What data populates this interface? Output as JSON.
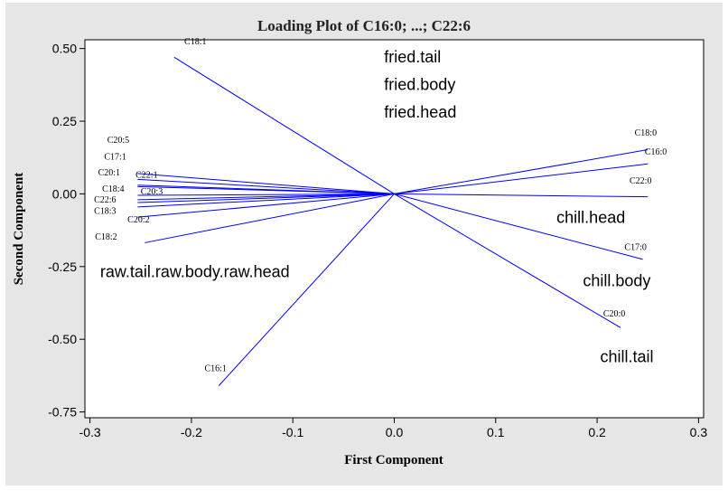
{
  "chart_data": {
    "type": "loading-plot",
    "title": "Loading Plot of C16:0; ...; C22:6",
    "xlabel": "First Component",
    "ylabel": "Second Component",
    "xlim": [
      -0.305,
      0.305
    ],
    "ylim": [
      -0.77,
      0.53
    ],
    "xticks": [
      -0.3,
      -0.2,
      -0.1,
      0.0,
      0.1,
      0.2,
      0.3
    ],
    "xtick_labels": [
      "-0.3",
      "-0.2",
      "-0.1",
      "0.0",
      "0.1",
      "0.2",
      "0.3"
    ],
    "yticks": [
      0.5,
      0.25,
      0.0,
      -0.25,
      -0.5,
      -0.75
    ],
    "ytick_labels": [
      "0.50",
      "0.25",
      "0.00",
      "-0.25",
      "-0.50",
      "-0.75"
    ],
    "grid": false,
    "line_color": "#0000ff",
    "loadings": [
      {
        "label": "C18:1",
        "x": -0.217,
        "y": 0.47,
        "lx": -0.207,
        "ly": 0.515
      },
      {
        "label": "C20:5",
        "x": -0.253,
        "y": 0.07,
        "lx": -0.283,
        "ly": 0.175
      },
      {
        "label": "C17:1",
        "x": -0.253,
        "y": 0.05,
        "lx": -0.286,
        "ly": 0.118
      },
      {
        "label": "C20:1",
        "x": -0.253,
        "y": 0.03,
        "lx": -0.292,
        "ly": 0.063
      },
      {
        "label": "C22:1",
        "x": -0.253,
        "y": 0.025,
        "lx": -0.255,
        "ly": 0.055
      },
      {
        "label": "C18:4",
        "x": -0.253,
        "y": -0.02,
        "lx": -0.288,
        "ly": 0.008
      },
      {
        "label": "C20:3",
        "x": -0.253,
        "y": -0.005,
        "lx": -0.25,
        "ly": -0.002
      },
      {
        "label": "C22:6",
        "x": -0.253,
        "y": -0.03,
        "lx": -0.296,
        "ly": -0.03
      },
      {
        "label": "C18:3",
        "x": -0.253,
        "y": -0.045,
        "lx": -0.296,
        "ly": -0.068
      },
      {
        "label": "C20:2",
        "x": -0.253,
        "y": -0.08,
        "lx": -0.263,
        "ly": -0.098
      },
      {
        "label": "C18:2",
        "x": -0.246,
        "y": -0.168,
        "lx": -0.295,
        "ly": -0.158
      },
      {
        "label": "C16:1",
        "x": -0.173,
        "y": -0.66,
        "lx": -0.187,
        "ly": -0.61
      },
      {
        "label": "C18:0",
        "x": 0.25,
        "y": 0.152,
        "lx": 0.237,
        "ly": 0.2
      },
      {
        "label": "C16:0",
        "x": 0.25,
        "y": 0.103,
        "lx": 0.247,
        "ly": 0.135
      },
      {
        "label": "C22:0",
        "x": 0.25,
        "y": -0.01,
        "lx": 0.232,
        "ly": 0.035
      },
      {
        "label": "C17:0",
        "x": 0.245,
        "y": -0.225,
        "lx": 0.227,
        "ly": -0.193
      },
      {
        "label": "C20:0",
        "x": 0.223,
        "y": -0.46,
        "lx": 0.206,
        "ly": -0.422
      }
    ],
    "annotations": [
      {
        "text": "fried.tail",
        "x": -0.01,
        "y": 0.453
      },
      {
        "text": "fried.body",
        "x": -0.01,
        "y": 0.358
      },
      {
        "text": "fried.head",
        "x": -0.01,
        "y": 0.263
      },
      {
        "text": "chill.head",
        "x": 0.16,
        "y": -0.1
      },
      {
        "text": "raw.tail.raw.body.raw.head",
        "x": -0.29,
        "y": -0.287
      },
      {
        "text": "chill.body",
        "x": 0.186,
        "y": -0.318
      },
      {
        "text": "chill.tail",
        "x": 0.203,
        "y": -0.578
      }
    ]
  }
}
